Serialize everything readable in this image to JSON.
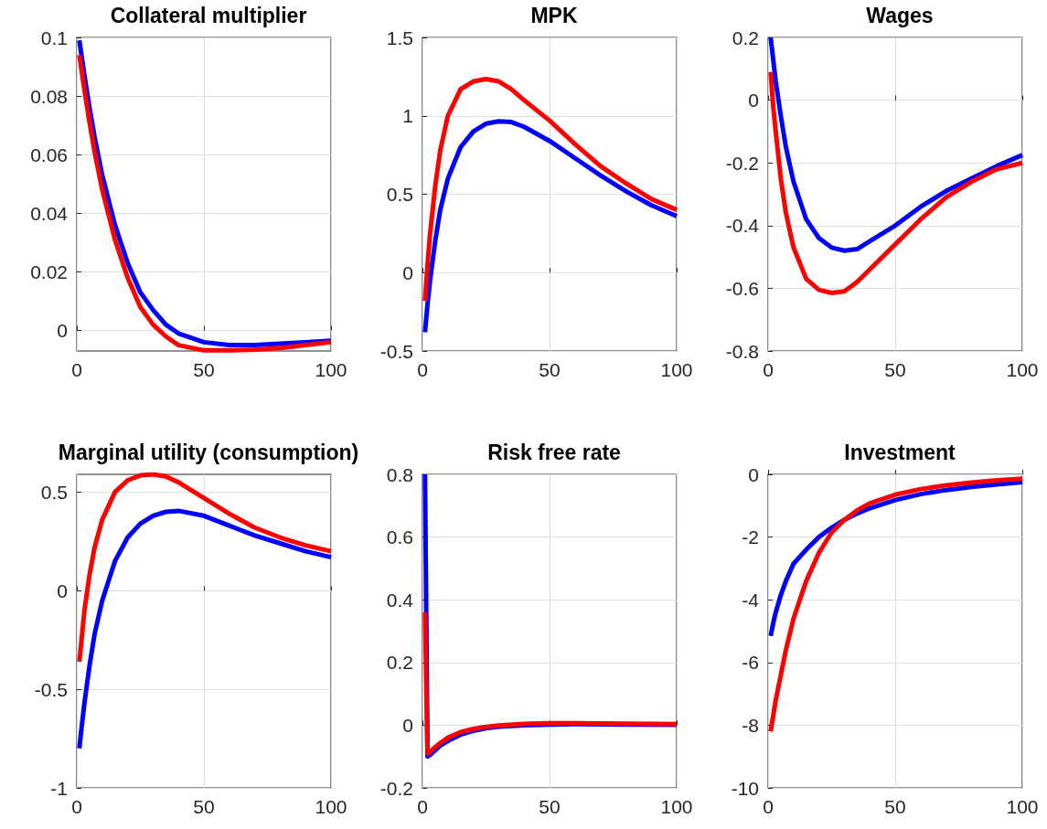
{
  "chart_data": [
    {
      "type": "line",
      "title": "Collateral multiplier",
      "x": [
        1,
        2,
        3,
        5,
        7,
        10,
        15,
        20,
        25,
        30,
        35,
        40,
        50,
        60,
        70,
        80,
        90,
        100
      ],
      "xlim": [
        0,
        100
      ],
      "xticks": [
        0,
        50,
        100
      ],
      "ylim": [
        -0.007,
        0.1
      ],
      "yticks": [
        0,
        0.02,
        0.04,
        0.06,
        0.08,
        0.1
      ],
      "grid": true,
      "marker": "none",
      "series": [
        {
          "color": "#0000ff",
          "values": [
            0.099,
            0.093,
            0.087,
            0.076,
            0.066,
            0.053,
            0.036,
            0.023,
            0.013,
            0.007,
            0.002,
            -0.001,
            -0.004,
            -0.005,
            -0.005,
            -0.0045,
            -0.004,
            -0.0035
          ]
        },
        {
          "color": "#ff0000",
          "values": [
            0.094,
            0.088,
            0.082,
            0.071,
            0.061,
            0.048,
            0.031,
            0.018,
            0.008,
            0.002,
            -0.002,
            -0.005,
            -0.0068,
            -0.0068,
            -0.0065,
            -0.006,
            -0.005,
            -0.004
          ]
        }
      ]
    },
    {
      "type": "line",
      "title": "MPK",
      "x": [
        1,
        2,
        3,
        5,
        7,
        10,
        15,
        20,
        25,
        30,
        35,
        40,
        50,
        60,
        70,
        80,
        90,
        100
      ],
      "xlim": [
        0,
        100
      ],
      "xticks": [
        0,
        50,
        100
      ],
      "ylim": [
        -0.5,
        1.5
      ],
      "yticks": [
        -0.5,
        0,
        0.5,
        1,
        1.5
      ],
      "grid": true,
      "marker": "none",
      "series": [
        {
          "color": "#0000ff",
          "values": [
            -0.38,
            -0.2,
            -0.05,
            0.2,
            0.4,
            0.6,
            0.8,
            0.9,
            0.95,
            0.965,
            0.96,
            0.93,
            0.84,
            0.73,
            0.62,
            0.52,
            0.43,
            0.36
          ]
        },
        {
          "color": "#ff0000",
          "values": [
            -0.18,
            0.05,
            0.25,
            0.55,
            0.78,
            1.0,
            1.17,
            1.22,
            1.235,
            1.22,
            1.17,
            1.1,
            0.97,
            0.82,
            0.68,
            0.57,
            0.47,
            0.4
          ]
        }
      ]
    },
    {
      "type": "line",
      "title": "Wages",
      "x": [
        1,
        2,
        3,
        5,
        7,
        10,
        15,
        20,
        25,
        30,
        35,
        40,
        50,
        60,
        70,
        80,
        90,
        100
      ],
      "xlim": [
        0,
        100
      ],
      "xticks": [
        0,
        50,
        100
      ],
      "ylim": [
        -0.8,
        0.2
      ],
      "yticks": [
        -0.8,
        -0.6,
        -0.4,
        -0.2,
        0,
        0.2
      ],
      "grid": true,
      "marker": "none",
      "series": [
        {
          "color": "#0000ff",
          "values": [
            0.2,
            0.13,
            0.06,
            -0.05,
            -0.15,
            -0.26,
            -0.38,
            -0.44,
            -0.47,
            -0.48,
            -0.475,
            -0.45,
            -0.4,
            -0.34,
            -0.29,
            -0.25,
            -0.21,
            -0.175
          ]
        },
        {
          "color": "#ff0000",
          "values": [
            0.09,
            -0.02,
            -0.1,
            -0.25,
            -0.36,
            -0.47,
            -0.57,
            -0.605,
            -0.615,
            -0.61,
            -0.58,
            -0.54,
            -0.46,
            -0.38,
            -0.31,
            -0.26,
            -0.22,
            -0.2
          ]
        }
      ]
    },
    {
      "type": "line",
      "title": "Marginal utility (consumption)",
      "x": [
        1,
        2,
        3,
        5,
        7,
        10,
        15,
        20,
        25,
        30,
        35,
        40,
        50,
        60,
        70,
        80,
        90,
        100
      ],
      "xlim": [
        0,
        100
      ],
      "xticks": [
        0,
        50,
        100
      ],
      "ylim": [
        -1,
        0.59
      ],
      "yticks": [
        -1,
        -0.5,
        0,
        0.5
      ],
      "grid": true,
      "marker": "none",
      "series": [
        {
          "color": "#0000ff",
          "values": [
            -0.8,
            -0.68,
            -0.57,
            -0.38,
            -0.22,
            -0.05,
            0.15,
            0.27,
            0.34,
            0.38,
            0.4,
            0.405,
            0.38,
            0.33,
            0.28,
            0.24,
            0.2,
            0.17
          ]
        },
        {
          "color": "#ff0000",
          "values": [
            -0.36,
            -0.23,
            -0.1,
            0.08,
            0.22,
            0.36,
            0.5,
            0.56,
            0.585,
            0.59,
            0.58,
            0.55,
            0.47,
            0.39,
            0.32,
            0.27,
            0.23,
            0.2
          ]
        }
      ]
    },
    {
      "type": "line",
      "title": "Risk free rate",
      "x": [
        1,
        2,
        3,
        5,
        7,
        10,
        15,
        20,
        25,
        30,
        40,
        50,
        60,
        80,
        100
      ],
      "xlim": [
        0,
        100
      ],
      "xticks": [
        0,
        50,
        100
      ],
      "ylim": [
        -0.2,
        0.8
      ],
      "yticks": [
        -0.2,
        0,
        0.2,
        0.4,
        0.6,
        0.8
      ],
      "grid": true,
      "marker": "none",
      "series": [
        {
          "color": "#0000ff",
          "values": [
            0.8,
            -0.1,
            -0.095,
            -0.08,
            -0.065,
            -0.05,
            -0.03,
            -0.018,
            -0.01,
            -0.005,
            0,
            0.002,
            0.003,
            0.002,
            0.001
          ]
        },
        {
          "color": "#ff0000",
          "values": [
            0.36,
            -0.09,
            -0.085,
            -0.07,
            -0.057,
            -0.04,
            -0.022,
            -0.012,
            -0.005,
            -0.001,
            0.004,
            0.006,
            0.006,
            0.005,
            0.003
          ]
        }
      ]
    },
    {
      "type": "line",
      "title": "Investment",
      "x": [
        1,
        2,
        3,
        5,
        7,
        10,
        15,
        20,
        25,
        30,
        35,
        40,
        50,
        60,
        70,
        80,
        90,
        100
      ],
      "xlim": [
        0,
        100
      ],
      "xticks": [
        0,
        50,
        100
      ],
      "ylim": [
        -10,
        0
      ],
      "yticks": [
        -10,
        -8,
        -6,
        -4,
        -2,
        0
      ],
      "grid": true,
      "marker": "none",
      "series": [
        {
          "color": "#0000ff",
          "values": [
            -5.15,
            -4.75,
            -4.4,
            -3.85,
            -3.4,
            -2.85,
            -2.4,
            -2.0,
            -1.7,
            -1.45,
            -1.25,
            -1.08,
            -0.82,
            -0.63,
            -0.5,
            -0.4,
            -0.32,
            -0.25
          ]
        },
        {
          "color": "#ff0000",
          "values": [
            -8.2,
            -7.7,
            -7.2,
            -6.4,
            -5.6,
            -4.6,
            -3.4,
            -2.5,
            -1.85,
            -1.45,
            -1.15,
            -0.92,
            -0.65,
            -0.47,
            -0.35,
            -0.26,
            -0.19,
            -0.14
          ]
        }
      ]
    }
  ]
}
